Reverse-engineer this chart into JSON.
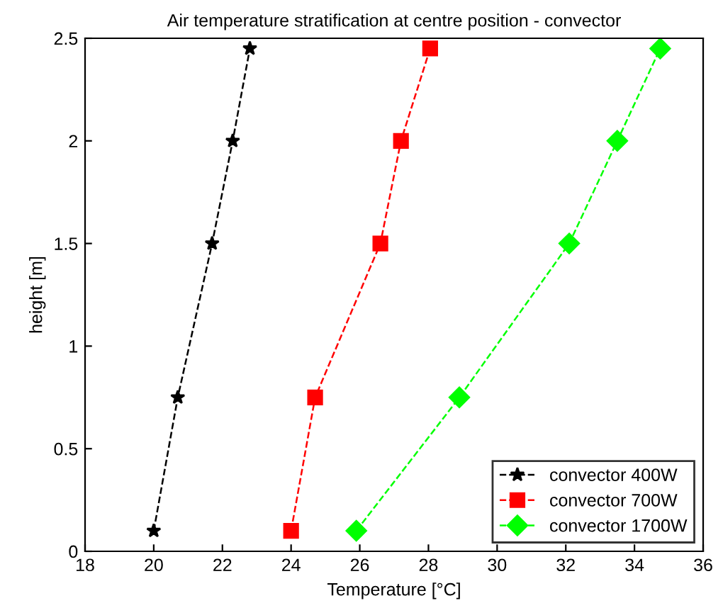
{
  "chart_data": {
    "type": "line",
    "title": "Air temperature stratification at centre position - convector",
    "xlabel": "Temperature [°C]",
    "ylabel": "height [m]",
    "xlim": [
      18,
      36
    ],
    "xticks": [
      18,
      20,
      22,
      24,
      26,
      28,
      30,
      32,
      34,
      36
    ],
    "ylim": [
      0,
      2.5
    ],
    "yticks": [
      0,
      0.5,
      1,
      1.5,
      2,
      2.5
    ],
    "grid": false,
    "legend": "bottom right",
    "line_style": "dashed",
    "series": [
      {
        "name": "convector 400W",
        "color": "#000000",
        "marker": "star",
        "x": [
          20.0,
          20.7,
          21.7,
          22.3,
          22.8
        ],
        "values": [
          0.1,
          0.75,
          1.5,
          2.0,
          2.45
        ]
      },
      {
        "name": "convector 700W",
        "color": "#ff0000",
        "marker": "square",
        "x": [
          24.0,
          24.7,
          26.6,
          27.2,
          28.05
        ],
        "values": [
          0.1,
          0.75,
          1.5,
          2.0,
          2.45
        ]
      },
      {
        "name": "convector 1700W",
        "color": "#00ff00",
        "marker": "diamond",
        "x": [
          25.9,
          28.9,
          32.1,
          33.5,
          34.75
        ],
        "values": [
          0.1,
          0.75,
          1.5,
          2.0,
          2.45
        ]
      }
    ]
  }
}
